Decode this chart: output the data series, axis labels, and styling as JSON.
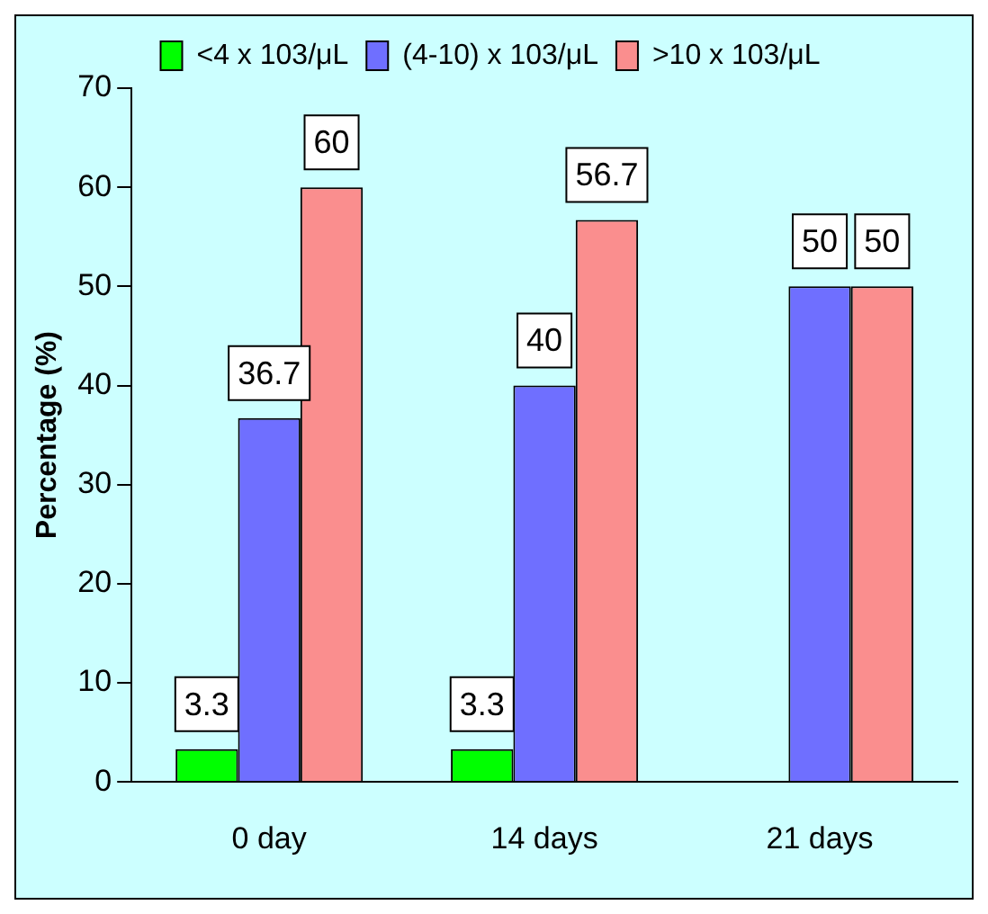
{
  "chart_data": {
    "type": "bar",
    "ylabel": "Percentage (%)",
    "categories": [
      "0 day",
      "14 days",
      "21 days"
    ],
    "series": [
      {
        "name": "<4 x 103/μL",
        "color": "#00ff00",
        "values": [
          3.3,
          3.3,
          null
        ]
      },
      {
        "name": "(4-10) x 103/μL",
        "color": "#6f6fff",
        "values": [
          36.7,
          40,
          50
        ]
      },
      {
        "name": ">10 x 103/μL",
        "color": "#fa8e8e",
        "values": [
          60,
          56.7,
          50
        ]
      }
    ],
    "ylim": [
      0,
      70
    ],
    "yticks": [
      0,
      10,
      20,
      30,
      40,
      50,
      60,
      70
    ],
    "grid": false,
    "legend": "top",
    "data_labels": true
  }
}
